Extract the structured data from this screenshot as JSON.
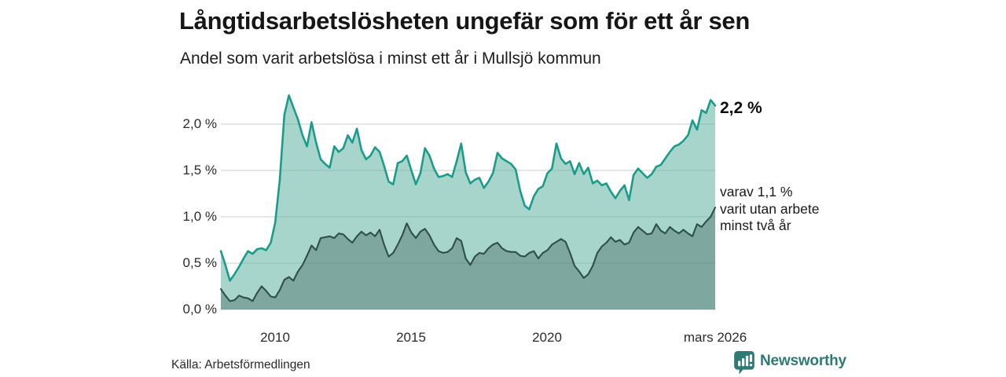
{
  "header": {
    "title": "Långtidsarbetslösheten ungefär som för ett år sen",
    "subtitle": "Andel som varit arbetslösa i minst ett år i Mullsjö kommun"
  },
  "chart_data": {
    "type": "area",
    "title": "Långtidsarbetslösheten ungefär som för ett år sen",
    "subtitle": "Andel som varit arbetslösa i minst ett år i Mullsjö kommun",
    "unit": "%",
    "x_start": 2008.0,
    "x_step": 0.166667,
    "x_end_label": "mars 2026",
    "ylim": [
      0,
      2.4
    ],
    "grid": true,
    "legend": "none",
    "series": [
      {
        "name": "Andel arbetslösa minst ett år",
        "end_value": 2.2,
        "line_color": "#1b9c8a",
        "fill_color": "rgba(94,179,161,0.55)",
        "values": [
          0.63,
          0.48,
          0.31,
          0.38,
          0.46,
          0.55,
          0.63,
          0.6,
          0.65,
          0.66,
          0.64,
          0.72,
          0.94,
          1.4,
          2.1,
          2.31,
          2.18,
          2.05,
          1.88,
          1.76,
          2.02,
          1.8,
          1.62,
          1.57,
          1.53,
          1.76,
          1.7,
          1.74,
          1.88,
          1.8,
          1.95,
          1.72,
          1.62,
          1.66,
          1.75,
          1.7,
          1.55,
          1.38,
          1.35,
          1.58,
          1.6,
          1.66,
          1.5,
          1.35,
          1.47,
          1.74,
          1.66,
          1.52,
          1.43,
          1.44,
          1.46,
          1.43,
          1.6,
          1.79,
          1.48,
          1.36,
          1.4,
          1.42,
          1.31,
          1.38,
          1.47,
          1.69,
          1.63,
          1.6,
          1.57,
          1.51,
          1.28,
          1.12,
          1.08,
          1.22,
          1.3,
          1.33,
          1.47,
          1.52,
          1.79,
          1.63,
          1.57,
          1.6,
          1.46,
          1.58,
          1.46,
          1.53,
          1.36,
          1.39,
          1.34,
          1.36,
          1.27,
          1.2,
          1.28,
          1.34,
          1.18,
          1.45,
          1.52,
          1.47,
          1.42,
          1.46,
          1.54,
          1.56,
          1.63,
          1.7,
          1.76,
          1.78,
          1.82,
          1.88,
          2.04,
          1.94,
          2.15,
          2.12,
          2.26,
          2.2
        ]
      },
      {
        "name": "Varav utan arbete minst två år",
        "end_value": 1.1,
        "line_color": "#2e4f4a",
        "fill_color": "rgba(47,79,74,0.34)",
        "values": [
          0.22,
          0.15,
          0.09,
          0.1,
          0.15,
          0.13,
          0.12,
          0.09,
          0.18,
          0.25,
          0.2,
          0.14,
          0.13,
          0.21,
          0.32,
          0.35,
          0.31,
          0.41,
          0.48,
          0.58,
          0.69,
          0.64,
          0.77,
          0.78,
          0.79,
          0.77,
          0.82,
          0.81,
          0.76,
          0.72,
          0.79,
          0.84,
          0.8,
          0.83,
          0.79,
          0.86,
          0.7,
          0.57,
          0.61,
          0.7,
          0.8,
          0.93,
          0.83,
          0.77,
          0.84,
          0.87,
          0.8,
          0.7,
          0.63,
          0.61,
          0.62,
          0.66,
          0.77,
          0.74,
          0.55,
          0.48,
          0.57,
          0.61,
          0.6,
          0.66,
          0.7,
          0.72,
          0.66,
          0.63,
          0.62,
          0.62,
          0.58,
          0.57,
          0.61,
          0.63,
          0.55,
          0.61,
          0.64,
          0.7,
          0.73,
          0.76,
          0.73,
          0.61,
          0.47,
          0.41,
          0.34,
          0.38,
          0.47,
          0.61,
          0.68,
          0.72,
          0.78,
          0.73,
          0.75,
          0.7,
          0.72,
          0.83,
          0.89,
          0.85,
          0.81,
          0.82,
          0.92,
          0.85,
          0.82,
          0.89,
          0.85,
          0.82,
          0.86,
          0.82,
          0.79,
          0.92,
          0.89,
          0.95,
          1.0,
          1.1
        ]
      }
    ],
    "y_ticks": [
      {
        "value": 0.0,
        "label": "0,0 %"
      },
      {
        "value": 0.5,
        "label": "0,5 %"
      },
      {
        "value": 1.0,
        "label": "1,0 %"
      },
      {
        "value": 1.5,
        "label": "1,5 %"
      },
      {
        "value": 2.0,
        "label": "2,0 %"
      }
    ],
    "x_ticks": [
      {
        "value": 2010,
        "label": "2010"
      },
      {
        "value": 2015,
        "label": "2015"
      },
      {
        "value": 2020,
        "label": "2020"
      },
      {
        "value": 2026.17,
        "label": "mars 2026"
      }
    ],
    "annotations": {
      "end_value_label": "2,2 %",
      "secondary_label": "varav 1,1 %\nvarit utan arbete\nminst två år"
    },
    "gridline_color": "#d8d8d8"
  },
  "footer": {
    "source": "Källa: Arbetsförmedlingen",
    "brand": "Newsworthy",
    "brand_color": "#2e7a74"
  }
}
